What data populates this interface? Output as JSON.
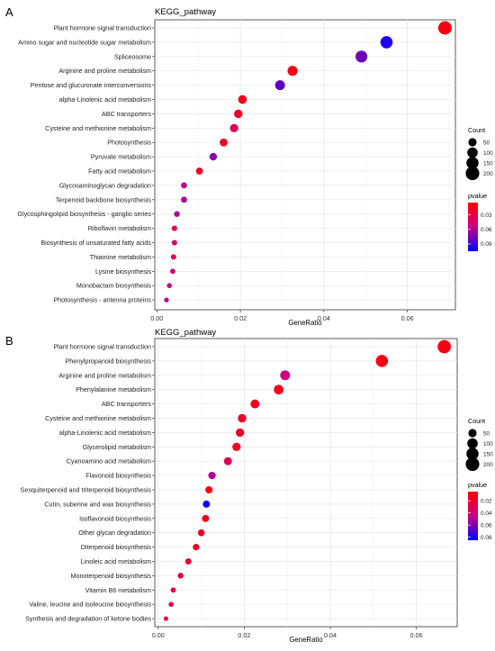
{
  "chart_data": [
    {
      "panel_letter": "A",
      "title": "KEGG_pathway",
      "type": "scatter",
      "xlabel": "GeneRatio",
      "xlim": [
        -0.0005,
        0.0715
      ],
      "xticks": [
        0.0,
        0.02,
        0.04,
        0.06
      ],
      "xtick_labels": [
        "0.00",
        "0.02",
        "0.04",
        "0.06"
      ],
      "grid": true,
      "legend_position": "right",
      "size_legend": {
        "title": "Count",
        "values": [
          50,
          100,
          150,
          200
        ],
        "labels": [
          "50",
          "100",
          "150",
          "200"
        ]
      },
      "color_legend": {
        "title": "pvalue",
        "range": [
          0.005,
          0.105
        ],
        "ticks": [
          0.03,
          0.06,
          0.09
        ],
        "tick_labels": [
          "0.03",
          "0.06",
          "0.09"
        ],
        "colors": [
          "#ff0000",
          "#0000ff"
        ]
      },
      "categories": [
        "Plant hormone signal transduction",
        "Amino sugar and nucleotide sugar metabolism",
        "Spliceosome",
        "Arginine and proline metabolism",
        "Pentose and glucuronate interconversions",
        "alpha-Linolenic acid metabolism",
        "ABC transporters",
        "Cysteine and methionine metabolism",
        "Photosynthesis",
        "Pyruvate metabolism",
        "Fatty acid metabolism",
        "Glycosaminoglycan degradation",
        "Terpenoid backbone biosynthesis",
        "Glycosphingolipid biosynthesis - ganglio series",
        "Riboflavin metabolism",
        "Biosynthesis of unsaturated fatty acids",
        "Thiamine metabolism",
        "Lysine biosynthesis",
        "Monobactam biosynthesis",
        "Photosynthesis - antenna proteins"
      ],
      "x": [
        0.069,
        0.055,
        0.049,
        0.0325,
        0.0295,
        0.0205,
        0.0195,
        0.0185,
        0.016,
        0.0135,
        0.0102,
        0.0065,
        0.0065,
        0.0048,
        0.0042,
        0.0042,
        0.004,
        0.0038,
        0.003,
        0.0023
      ],
      "count": [
        195,
        155,
        140,
        90,
        85,
        60,
        55,
        52,
        45,
        38,
        30,
        18,
        18,
        14,
        12,
        12,
        11,
        10,
        8,
        6
      ],
      "pvalue": [
        0.012,
        0.098,
        0.078,
        0.015,
        0.082,
        0.018,
        0.022,
        0.04,
        0.02,
        0.072,
        0.02,
        0.06,
        0.062,
        0.065,
        0.035,
        0.045,
        0.04,
        0.05,
        0.055,
        0.06
      ]
    },
    {
      "panel_letter": "B",
      "title": "KEGG_pathway",
      "type": "scatter",
      "xlabel": "GeneRatio",
      "xlim": [
        -0.0008,
        0.0695
      ],
      "xticks": [
        0.0,
        0.02,
        0.04,
        0.06
      ],
      "xtick_labels": [
        "0.00",
        "0.02",
        "0.04",
        "0.06"
      ],
      "grid": true,
      "legend_position": "right",
      "size_legend": {
        "title": "Count",
        "values": [
          50,
          100,
          150,
          200
        ],
        "labels": [
          "50",
          "100",
          "150",
          "200"
        ]
      },
      "color_legend": {
        "title": "pvalue",
        "range": [
          0.005,
          0.085
        ],
        "ticks": [
          0.02,
          0.04,
          0.06,
          0.08
        ],
        "tick_labels": [
          "0.02",
          "0.04",
          "0.06",
          "0.08"
        ],
        "colors": [
          "#ff0000",
          "#0000ff"
        ]
      },
      "categories": [
        "Plant hormone signal transduction",
        "Phenylpropanoid biosynthesis",
        "Arginine and proline metabolism",
        "Phenylalanine metabolism",
        "ABC transporters",
        "Cysteine and methionine metabolism",
        "alpha-Linolenic acid metabolism",
        "Glycerolipid metabolism",
        "Cyanoamino acid metabolism",
        "Flavonoid biosynthesis",
        "Sesquiterpenoid and triterpenoid biosynthesis",
        "Cutin, suberine and wax biosynthesis",
        "Isoflavonoid biosynthesis",
        "Other glycan degradation",
        "Diterpenoid biosynthesis",
        "Linoleic acid metabolism",
        "Monoterpenoid biosynthesis",
        "Vitamin B6 metabolism",
        "Valine, leucine and isoleucine biosynthesis",
        "Synthesis and degradation of ketone bodies"
      ],
      "x": [
        0.0665,
        0.052,
        0.0295,
        0.028,
        0.0225,
        0.0195,
        0.019,
        0.0182,
        0.0162,
        0.0125,
        0.0118,
        0.0112,
        0.011,
        0.01,
        0.0088,
        0.007,
        0.0052,
        0.0035,
        0.003,
        0.0018
      ],
      "count": [
        190,
        150,
        85,
        80,
        65,
        55,
        54,
        52,
        46,
        36,
        34,
        33,
        32,
        28,
        24,
        20,
        15,
        10,
        8,
        5
      ],
      "pvalue": [
        0.01,
        0.012,
        0.045,
        0.014,
        0.015,
        0.018,
        0.02,
        0.016,
        0.03,
        0.05,
        0.01,
        0.082,
        0.014,
        0.018,
        0.018,
        0.02,
        0.025,
        0.03,
        0.025,
        0.025
      ]
    }
  ]
}
